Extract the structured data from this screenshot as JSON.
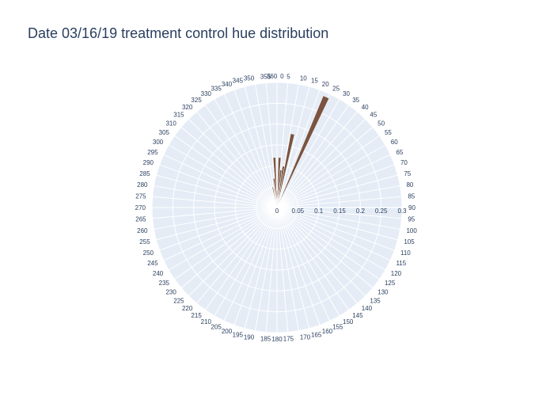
{
  "chart_data": {
    "type": "barpolar",
    "title": "Date 03/16/19 treatment control hue distribution",
    "angular_axis": {
      "direction": "clockwise",
      "rotation_start": "top",
      "tick_step": 5,
      "ticks": [
        "0",
        "5",
        "10",
        "15",
        "20",
        "25",
        "30",
        "35",
        "40",
        "45",
        "50",
        "55",
        "60",
        "65",
        "70",
        "75",
        "80",
        "85",
        "90",
        "95",
        "100",
        "105",
        "110",
        "115",
        "120",
        "125",
        "130",
        "135",
        "140",
        "145",
        "150",
        "155",
        "160",
        "165",
        "170",
        "175",
        "180",
        "185",
        "190",
        "195",
        "200",
        "205",
        "210",
        "215",
        "220",
        "225",
        "230",
        "235",
        "240",
        "245",
        "250",
        "255",
        "260",
        "265",
        "270",
        "275",
        "280",
        "285",
        "290",
        "295",
        "300",
        "305",
        "310",
        "315",
        "320",
        "325",
        "330",
        "335",
        "340",
        "345",
        "350",
        "355",
        "360"
      ]
    },
    "radial_axis": {
      "range": [
        0,
        0.3
      ],
      "ticks": [
        "0",
        "0.05",
        "0.1",
        "0.15",
        "0.2",
        "0.25",
        "0.3"
      ],
      "tick_values": [
        0,
        0.05,
        0.1,
        0.15,
        0.2,
        0.25,
        0.3
      ],
      "angle": 90
    },
    "grid": true,
    "bar_width_degrees": 3,
    "bar_color": "#7a5440",
    "plot_bg_color": "#e5ecf6",
    "series": [
      {
        "theta": [
          0,
          3,
          6,
          9,
          12,
          15,
          18,
          21,
          24,
          348,
          351,
          354,
          357
        ],
        "r": [
          0.04,
          0.12,
          0.09,
          0.1,
          0.18,
          0.02,
          0.02,
          0.01,
          0.29,
          0.05,
          0.02,
          0.07,
          0.12
        ]
      }
    ]
  }
}
